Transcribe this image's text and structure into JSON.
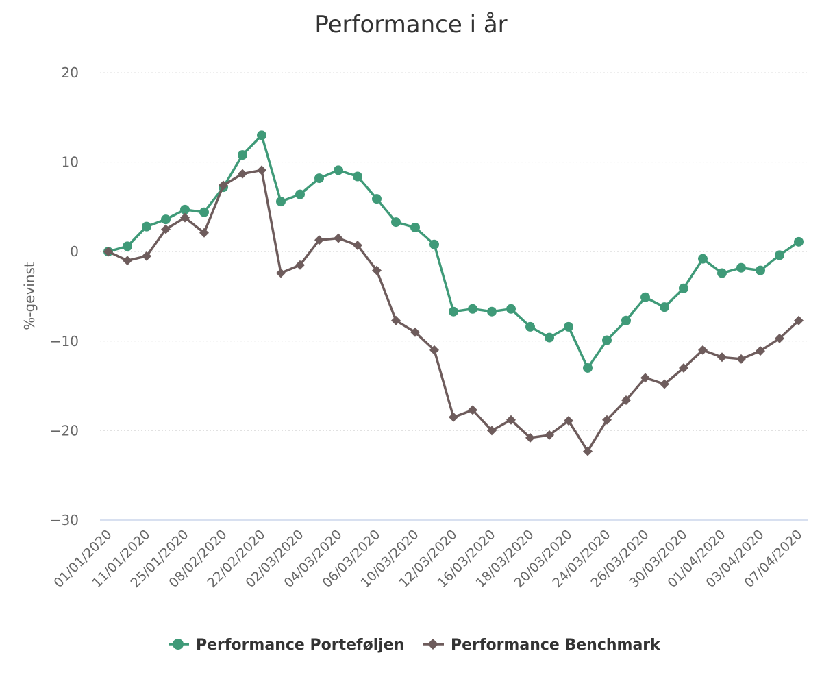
{
  "chart_data": {
    "type": "line",
    "title": "Performance i år",
    "xlabel": "",
    "ylabel": "%-gevinst",
    "ylim": [
      -30,
      20
    ],
    "yticks": [
      20,
      10,
      0,
      -10,
      -20,
      -30
    ],
    "grid": true,
    "legend_position": "bottom-center",
    "point_count": 37,
    "x_tick_labels": [
      "01/01/2020",
      "11/01/2020",
      "25/01/2020",
      "08/02/2020",
      "22/02/2020",
      "02/03/2020",
      "04/03/2020",
      "06/03/2020",
      "10/03/2020",
      "12/03/2020",
      "16/03/2020",
      "18/03/2020",
      "20/03/2020",
      "24/03/2020",
      "26/03/2020",
      "30/03/2020",
      "01/04/2020",
      "03/04/2020",
      "07/04/2020"
    ],
    "series": [
      {
        "name": "Performance Porteføljen",
        "color": "#3f9a78",
        "marker": "circle",
        "values": [
          0,
          0.6,
          2.8,
          3.6,
          4.7,
          4.4,
          7.2,
          10.8,
          13.0,
          5.6,
          6.4,
          8.2,
          9.1,
          8.4,
          5.9,
          3.3,
          2.7,
          0.8,
          -6.7,
          -6.4,
          -6.7,
          -6.4,
          -8.4,
          -9.6,
          -8.4,
          -13.0,
          -9.9,
          -7.7,
          -5.1,
          -6.2,
          -4.1,
          -0.8,
          -2.4,
          -1.8,
          -2.1,
          -0.4,
          1.1
        ]
      },
      {
        "name": "Performance Benchmark",
        "color": "#6e5c5c",
        "marker": "diamond",
        "values": [
          0,
          -1.0,
          -0.5,
          2.5,
          3.8,
          2.1,
          7.4,
          8.7,
          9.1,
          -2.4,
          -1.5,
          1.3,
          1.5,
          0.7,
          -2.1,
          -7.7,
          -9.0,
          -11.0,
          -18.5,
          -17.7,
          -20.0,
          -18.8,
          -20.8,
          -20.5,
          -18.9,
          -22.3,
          -18.8,
          -16.6,
          -14.1,
          -14.8,
          -13.0,
          -11.0,
          -11.8,
          -12.0,
          -11.1,
          -9.7,
          -7.7
        ]
      }
    ]
  }
}
